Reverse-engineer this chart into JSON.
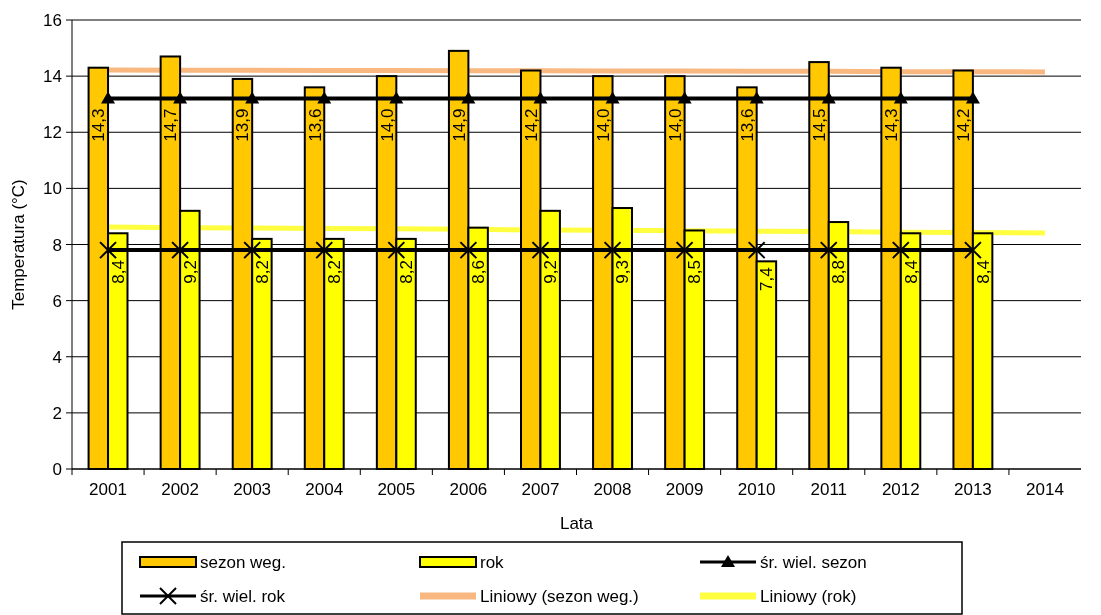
{
  "chart_data": {
    "type": "bar",
    "xlabel": "Lata",
    "ylabel": "Temperatura (°C)",
    "categories": [
      "2001",
      "2002",
      "2003",
      "2004",
      "2005",
      "2006",
      "2007",
      "2008",
      "2009",
      "2010",
      "2011",
      "2012",
      "2013",
      "2014"
    ],
    "ylim": [
      0,
      16
    ],
    "yticks": [
      0,
      2,
      4,
      6,
      8,
      10,
      12,
      14,
      16
    ],
    "grid": "y",
    "legend": "bottom",
    "series": [
      {
        "name": "sezon weg.",
        "color": "#ffc800",
        "values": [
          14.3,
          14.7,
          13.9,
          13.6,
          14.0,
          14.9,
          14.2,
          14.0,
          14.0,
          13.6,
          14.5,
          14.3,
          14.2,
          null
        ],
        "value_labels": [
          "14,3",
          "14,7",
          "13,9",
          "13,6",
          "14,0",
          "14,9",
          "14,2",
          "14,0",
          "14,0",
          "13,6",
          "14,5",
          "14,3",
          "14,2",
          null
        ]
      },
      {
        "name": "rok",
        "color": "#ffff00",
        "values": [
          8.4,
          9.2,
          8.2,
          8.2,
          8.2,
          8.6,
          9.2,
          9.3,
          8.5,
          7.4,
          8.8,
          8.4,
          8.4,
          null
        ],
        "value_labels": [
          "8,4",
          "9,2",
          "8,2",
          "8,2",
          "8,2",
          "8,6",
          "9,2",
          "9,3",
          "8,5",
          "7,4",
          "8,8",
          "8,4",
          "8,4",
          null
        ]
      },
      {
        "name": "śr. wiel. sezon",
        "type": "line",
        "color": "#000000",
        "marker": "triangle",
        "values": [
          13.2,
          13.2,
          13.2,
          13.2,
          13.2,
          13.2,
          13.2,
          13.2,
          13.2,
          13.2,
          13.2,
          13.2,
          13.2,
          null
        ]
      },
      {
        "name": "śr. wiel. rok",
        "type": "line",
        "color": "#000000",
        "marker": "cross",
        "values": [
          7.8,
          7.8,
          7.8,
          7.8,
          7.8,
          7.8,
          7.8,
          7.8,
          7.8,
          7.8,
          7.8,
          7.8,
          7.8,
          null
        ]
      },
      {
        "name": "Liniowy (sezon weg.)",
        "type": "line",
        "color": "#f8b880",
        "marker": "none",
        "values": [
          14.22,
          14.21,
          14.21,
          14.2,
          14.2,
          14.19,
          14.19,
          14.18,
          14.18,
          14.17,
          14.17,
          14.16,
          14.16,
          14.15
        ]
      },
      {
        "name": "Liniowy (rok)",
        "type": "line",
        "color": "#ffff40",
        "marker": "none",
        "values": [
          8.62,
          8.6,
          8.59,
          8.57,
          8.56,
          8.54,
          8.52,
          8.51,
          8.49,
          8.47,
          8.46,
          8.44,
          8.43,
          8.41
        ]
      }
    ]
  }
}
